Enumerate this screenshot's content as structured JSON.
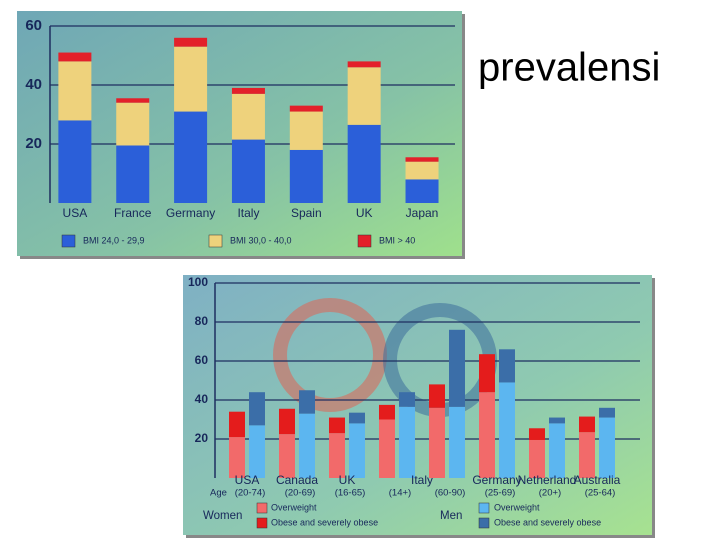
{
  "slide_title": "prevalensi",
  "chart_data": [
    {
      "type": "bar",
      "stacked": true,
      "categories": [
        "USA",
        "France",
        "Germany",
        "Italy",
        "Spain",
        "UK",
        "Japan"
      ],
      "series": [
        {
          "name": "BMI 24,0 - 29,9",
          "color": "#2b5fd9",
          "values": [
            28,
            19.5,
            31,
            21.5,
            18,
            26.5,
            8
          ]
        },
        {
          "name": "BMI 30,0 - 40,0",
          "color": "#eed27c",
          "values": [
            20,
            14.5,
            22,
            15.5,
            13,
            19.5,
            6
          ]
        },
        {
          "name": "BMI > 40",
          "color": "#e3202a",
          "values": [
            3,
            1.5,
            3,
            2,
            2,
            2,
            1.5
          ]
        }
      ],
      "ylim": [
        0,
        60
      ],
      "yticks": [
        20,
        40,
        60
      ],
      "grid": true
    },
    {
      "type": "bar",
      "stacked": true,
      "countries": [
        "USA",
        "Canada",
        "UK",
        "Italy",
        null,
        "Germany",
        "Netherland",
        "Australia"
      ],
      "age_label": "Age",
      "categories": [
        "(20-74)",
        "(20-69)",
        "(16-65)",
        "(14+)",
        "(60-90)",
        "(25-69)",
        "(20+)",
        "(25-64)"
      ],
      "series_groups": [
        {
          "name": "Women",
          "series": [
            {
              "name": "Overweight",
              "color": "#f26a6a",
              "values": [
                21,
                22.5,
                23,
                30,
                36,
                44,
                19.5,
                23.5
              ]
            },
            {
              "name": "Obese and severely obese",
              "color": "#e41c1c",
              "values": [
                13,
                13,
                8,
                7.5,
                12,
                19.5,
                6,
                8
              ]
            }
          ]
        },
        {
          "name": "Men",
          "series": [
            {
              "name": "Overweight",
              "color": "#5cb6f0",
              "values": [
                27,
                33,
                28,
                36.5,
                36.5,
                49,
                28,
                31
              ]
            },
            {
              "name": "Obese and severely obese",
              "color": "#3b6ea8",
              "values": [
                17,
                12,
                5.5,
                7.5,
                39.5,
                17,
                3,
                5
              ]
            }
          ]
        }
      ],
      "ylim": [
        0,
        100
      ],
      "yticks": [
        20,
        40,
        60,
        80,
        100
      ],
      "grid": true
    }
  ]
}
